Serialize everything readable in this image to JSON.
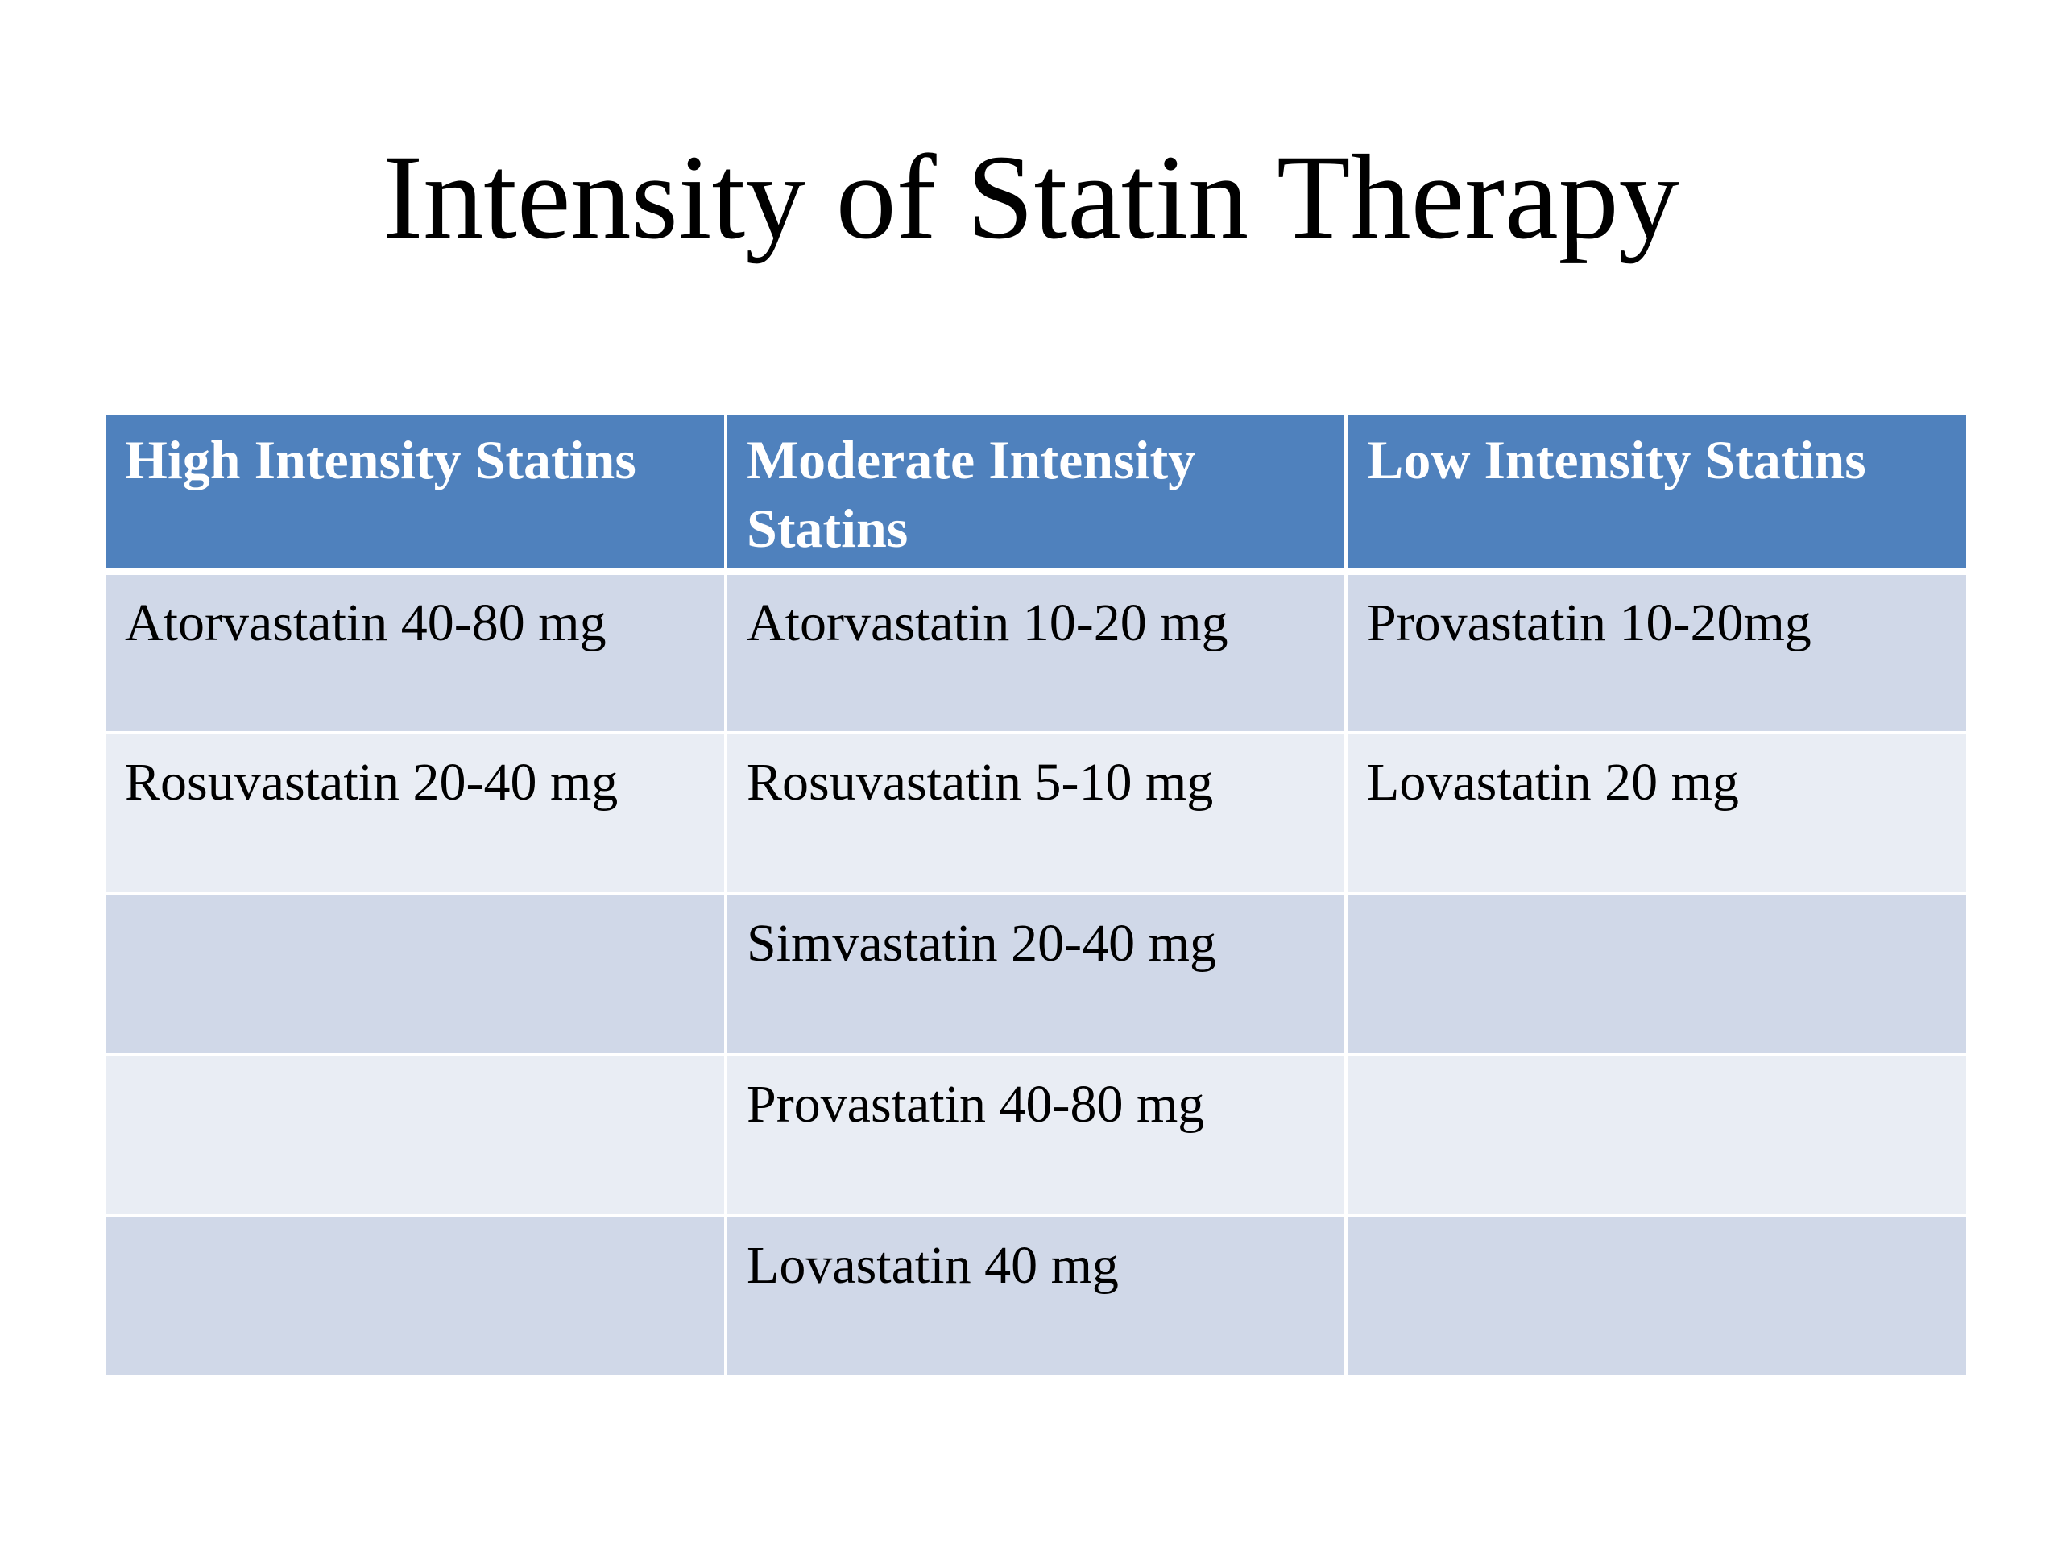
{
  "slide": {
    "title": "Intensity of Statin Therapy"
  },
  "colors": {
    "header_bg": "#4f81bd",
    "row_odd_bg": "#d0d8e8",
    "row_even_bg": "#e9edf4"
  },
  "table": {
    "headers": [
      "High Intensity Statins",
      "Moderate Intensity Statins",
      "Low Intensity Statins"
    ],
    "rows": [
      [
        "Atorvastatin 40-80 mg",
        "Atorvastatin 10-20 mg",
        "Provastatin 10-20mg"
      ],
      [
        "Rosuvastatin 20-40 mg",
        "Rosuvastatin 5-10 mg",
        "Lovastatin 20 mg"
      ],
      [
        "",
        "Simvastatin 20-40 mg",
        ""
      ],
      [
        "",
        "Provastatin 40-80 mg",
        ""
      ],
      [
        "",
        "Lovastatin 40 mg",
        ""
      ]
    ]
  }
}
